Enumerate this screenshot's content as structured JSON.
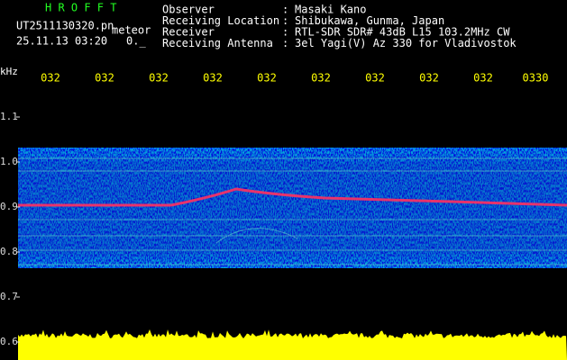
{
  "header": {
    "program": "H R O F F T",
    "filename": "UT2511130320.pn",
    "mode": "meteor",
    "datetime": "25.11.13 03:20",
    "status": "0._",
    "separator": ":",
    "info": [
      {
        "label": "Observer",
        "value": "Masaki Kano"
      },
      {
        "label": "Receiving Location",
        "value": "Shibukawa, Gunma, Japan"
      },
      {
        "label": "Receiver",
        "value": "RTL-SDR SDR# 43dB L15 103.2MHz CW"
      },
      {
        "label": "Receiving Antenna",
        "value": "3el Yagi(V) Az 330 for Vladivostok"
      }
    ]
  },
  "axis": {
    "unit": "kHz",
    "time_labels": [
      "032",
      "032",
      "032",
      "032",
      "032",
      "032",
      "032",
      "032",
      "032",
      "0330"
    ],
    "freq_labels": [
      "1.1",
      "1.0",
      "0.9",
      "0.8",
      "0.7",
      "0.6"
    ]
  }
}
